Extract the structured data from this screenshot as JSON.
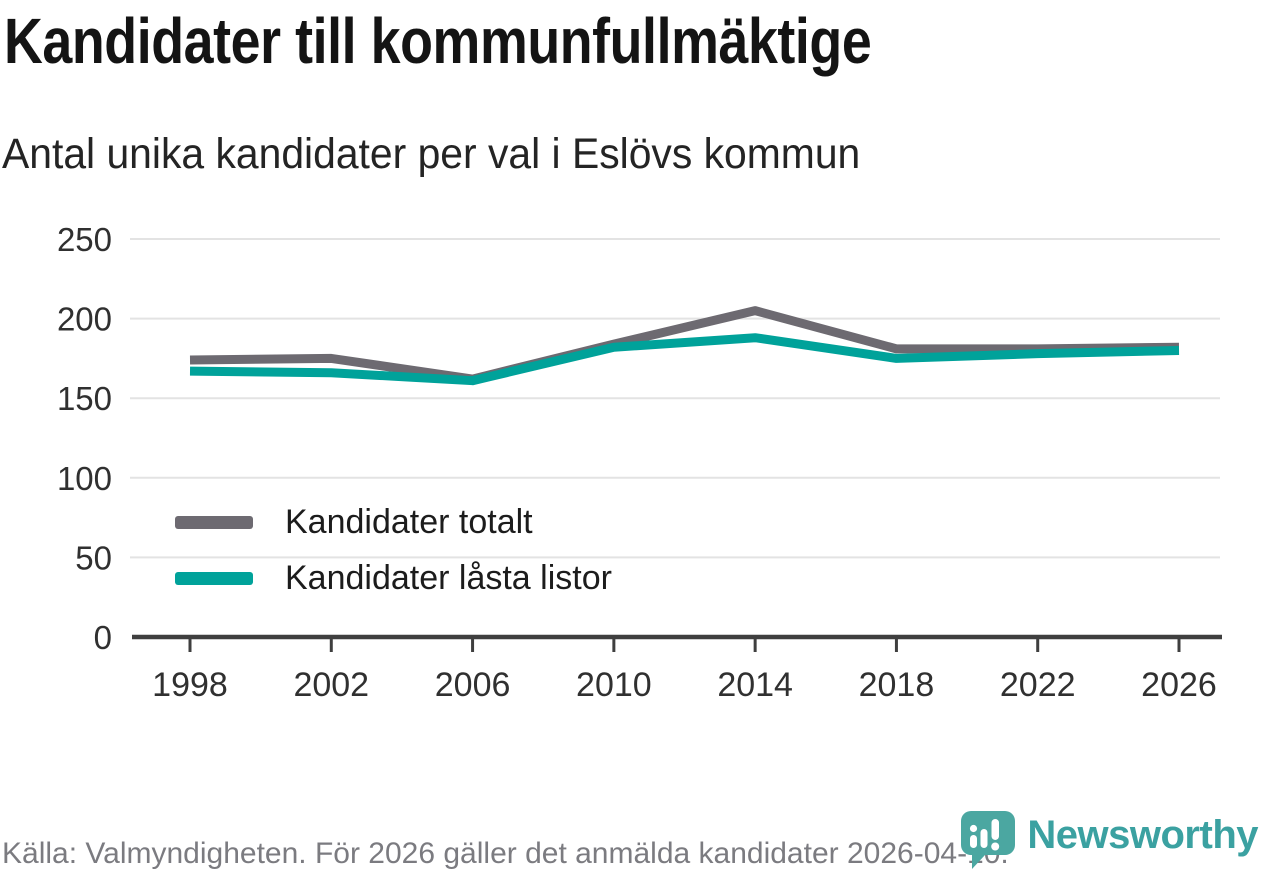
{
  "header": {
    "title": "Kandidater till kommunfullmäktige",
    "subtitle": "Antal unika kandidater per val i Eslövs kommun"
  },
  "chart_data": {
    "type": "line",
    "x": [
      1998,
      2002,
      2006,
      2010,
      2014,
      2018,
      2022,
      2026
    ],
    "series": [
      {
        "name": "Kandidater totalt",
        "color": "#6d6a71",
        "values": [
          174,
          175,
          162,
          184,
          205,
          181,
          181,
          182
        ]
      },
      {
        "name": "Kandidater låsta listor",
        "color": "#00a29a",
        "values": [
          167,
          166,
          161,
          182,
          188,
          175,
          178,
          180
        ]
      }
    ],
    "ylim": [
      0,
      250
    ],
    "yticks": [
      0,
      50,
      100,
      150,
      200,
      250
    ],
    "grid": true,
    "legend_position": "inside-left-middle"
  },
  "footer": {
    "source": "Källa: Valmyndigheten. För 2026 gäller det anmälda kandidater 2026-04-10.",
    "brand": "Newsworthy"
  },
  "colors": {
    "grid": "#e3e3e3",
    "axis": "#3f3f3f",
    "axis_text": "#303030",
    "brand_teal": "#4ba7a1",
    "brand_text": "#3ba1a1"
  }
}
